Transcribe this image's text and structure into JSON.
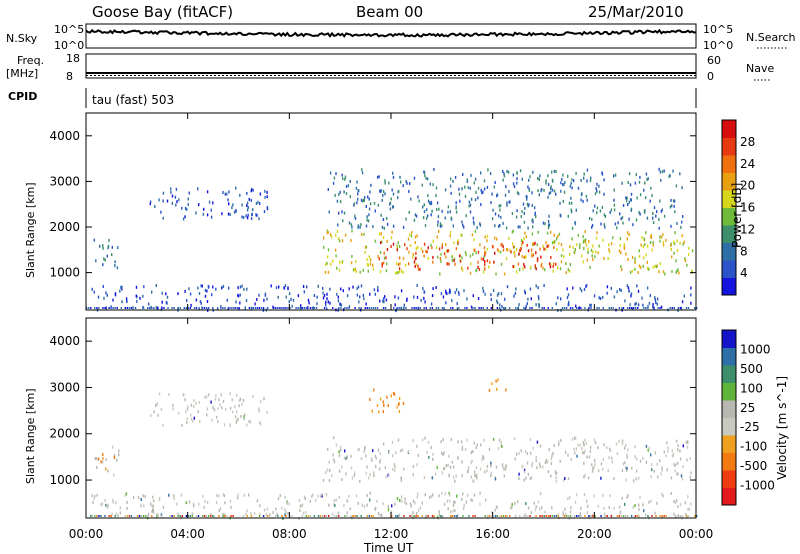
{
  "header": {
    "station": "Goose Bay (fitACF)",
    "beam": "Beam 00",
    "date": "25/Mar/2010"
  },
  "left_labels": {
    "nsky": "N.Sky",
    "nsky_ticks": [
      "10^5",
      "10^0"
    ],
    "freq": "Freq.",
    "freq_unit": "[MHz]",
    "freq_ticks": [
      "18",
      "8"
    ],
    "cpid": "CPID"
  },
  "right_labels": {
    "nsearch": "N.Search",
    "nsearch_ticks": [
      "10^5",
      "10^0"
    ],
    "nave": "Nave",
    "nave_ticks": [
      "60",
      "0"
    ]
  },
  "cpid_text": "tau (fast) 503",
  "time_axis": {
    "label": "Time UT",
    "ticks": [
      "00:00",
      "04:00",
      "08:00",
      "12:00",
      "16:00",
      "20:00",
      "00:00"
    ]
  },
  "colors": {
    "power": [
      "#1414e0",
      "#2a54c8",
      "#2f6fa8",
      "#3d8f6b",
      "#6fba3a",
      "#d6d61a",
      "#e8a010",
      "#f07010",
      "#e83a12",
      "#d80e0e"
    ],
    "velocity": [
      "#e31a1c",
      "#ef3b12",
      "#f27a10",
      "#f0a020",
      "#c9c9c0",
      "#b8b8b0",
      "#5fb53a",
      "#3d8f6b",
      "#2f6fa8",
      "#1414c8"
    ]
  },
  "chart_data": [
    {
      "type": "heatmap",
      "title": "Power",
      "ylabel": "Slant Range [km]",
      "xlabel": "",
      "x_range_hours": [
        0,
        24
      ],
      "ylim": [
        180,
        4500
      ],
      "yticks": [
        1000,
        2000,
        3000,
        4000
      ],
      "colorbar": {
        "label": "Power [dB]",
        "ticks": [
          4,
          8,
          12,
          16,
          20,
          24,
          28
        ]
      },
      "features": [
        {
          "t": [
            0.3,
            1.3
          ],
          "r": [
            1100,
            1800
          ],
          "level": 2
        },
        {
          "t": [
            9.3,
            23.9
          ],
          "r": [
            1000,
            1950
          ],
          "level": 5
        },
        {
          "t": [
            11.5,
            18.5
          ],
          "r": [
            1100,
            1700
          ],
          "level": 8
        },
        {
          "t": [
            2.5,
            7.2
          ],
          "r": [
            2200,
            2900
          ],
          "level": 1
        },
        {
          "t": [
            9.5,
            23.5
          ],
          "r": [
            2000,
            3300
          ],
          "level": 2
        },
        {
          "t": [
            0.2,
            23.8
          ],
          "r": [
            200,
            750
          ],
          "level": 1
        }
      ]
    },
    {
      "type": "heatmap",
      "title": "Velocity",
      "ylabel": "Slant Range [km]",
      "xlabel": "Time UT",
      "x_range_hours": [
        0,
        24
      ],
      "ylim": [
        180,
        4500
      ],
      "yticks": [
        1000,
        2000,
        3000,
        4000
      ],
      "colorbar": {
        "label": "Velocity [m s^-1]",
        "ticks": [
          "1000",
          "500",
          "100",
          "25",
          "-25",
          "-100",
          "-500",
          "-1000"
        ]
      },
      "features": [
        {
          "t": [
            0.3,
            1.3
          ],
          "r": [
            1100,
            1800
          ],
          "vel": -100
        },
        {
          "t": [
            9.3,
            23.9
          ],
          "r": [
            1000,
            1950
          ],
          "vel": 0
        },
        {
          "t": [
            11.0,
            12.5
          ],
          "r": [
            2500,
            3000
          ],
          "vel": -300
        },
        {
          "t": [
            15.8,
            16.5
          ],
          "r": [
            2950,
            3300
          ],
          "vel": -300
        },
        {
          "t": [
            2.5,
            7.2
          ],
          "r": [
            2200,
            2900
          ],
          "vel": 0
        },
        {
          "t": [
            0.2,
            23.8
          ],
          "r": [
            200,
            750
          ],
          "vel": 0
        }
      ]
    }
  ]
}
